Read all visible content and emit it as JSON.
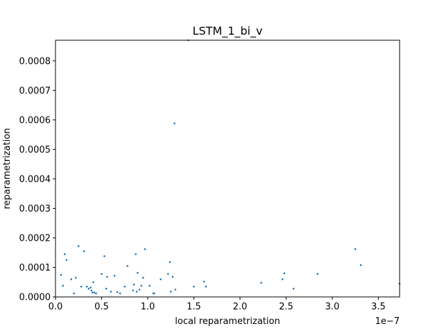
{
  "chart_data": {
    "type": "scatter",
    "title": "LSTM_1_bi_v",
    "xlabel": "local reparametrization",
    "ylabel": "reparametrization",
    "x_offset_label": "1e−7",
    "x_scale": 1e-07,
    "xlim": [
      0.0,
      3.73
    ],
    "ylim": [
      0.0,
      0.00087
    ],
    "x_ticks": [
      0.0,
      0.5,
      1.0,
      1.5,
      2.0,
      2.5,
      3.0,
      3.5
    ],
    "x_tick_labels": [
      "0.0",
      "0.5",
      "1.0",
      "1.5",
      "2.0",
      "2.5",
      "3.0",
      "3.5"
    ],
    "y_ticks": [
      0.0,
      0.0001,
      0.0002,
      0.0003,
      0.0004,
      0.0005,
      0.0006,
      0.0007,
      0.0008
    ],
    "y_tick_labels": [
      "0.0000",
      "0.0001",
      "0.0002",
      "0.0003",
      "0.0004",
      "0.0005",
      "0.0006",
      "0.0007",
      "0.0008"
    ],
    "grid": false,
    "legend": "none",
    "marker_color": "#1f77b4",
    "points": [
      [
        0.06,
        7.5e-05
      ],
      [
        0.08,
        3.8e-05
      ],
      [
        0.1,
        0.000145
      ],
      [
        0.12,
        0.000125
      ],
      [
        0.17,
        6e-05
      ],
      [
        0.2,
        1.2e-05
      ],
      [
        0.22,
        6.5e-05
      ],
      [
        0.25,
        0.000172
      ],
      [
        0.28,
        3.5e-05
      ],
      [
        0.31,
        0.000155
      ],
      [
        0.34,
        3.5e-05
      ],
      [
        0.36,
        2.8e-05
      ],
      [
        0.38,
        3.2e-05
      ],
      [
        0.39,
        2.2e-05
      ],
      [
        0.4,
        1.5e-05
      ],
      [
        0.41,
        5e-05
      ],
      [
        0.42,
        1.5e-05
      ],
      [
        0.44,
        1.2e-05
      ],
      [
        0.5,
        7.8e-05
      ],
      [
        0.53,
        0.000138
      ],
      [
        0.55,
        2.8e-05
      ],
      [
        0.56,
        6.8e-05
      ],
      [
        0.6,
        1.8e-05
      ],
      [
        0.64,
        7.2e-05
      ],
      [
        0.67,
        1.6e-05
      ],
      [
        0.7,
        1.2e-05
      ],
      [
        0.75,
        3.5e-05
      ],
      [
        0.78,
        0.000105
      ],
      [
        0.84,
        2.2e-05
      ],
      [
        0.85,
        4.2e-05
      ],
      [
        0.87,
        0.000145
      ],
      [
        0.88,
        1.8e-05
      ],
      [
        0.89,
        8.2e-05
      ],
      [
        0.91,
        2.5e-05
      ],
      [
        0.93,
        3.8e-05
      ],
      [
        0.95,
        6.5e-05
      ],
      [
        0.97,
        0.000162
      ],
      [
        1.02,
        3.8e-05
      ],
      [
        1.06,
        1.2e-05
      ],
      [
        1.07,
        1.2e-05
      ],
      [
        1.14,
        6e-05
      ],
      [
        1.22,
        7.8e-05
      ],
      [
        1.24,
        0.000118
      ],
      [
        1.25,
        1.8e-05
      ],
      [
        1.27,
        6.8e-05
      ],
      [
        1.29,
        0.000588
      ],
      [
        1.3,
        2.5e-05
      ],
      [
        1.44,
        0.00087
      ],
      [
        1.5,
        3.5e-05
      ],
      [
        1.61,
        5.2e-05
      ],
      [
        1.63,
        3.5e-05
      ],
      [
        2.23,
        4.8e-05
      ],
      [
        2.46,
        6e-05
      ],
      [
        2.48,
        8e-05
      ],
      [
        2.58,
        2.8e-05
      ],
      [
        2.84,
        7.8e-05
      ],
      [
        3.25,
        0.000162
      ],
      [
        3.31,
        0.000108
      ],
      [
        3.73,
        4.5e-05
      ]
    ]
  }
}
